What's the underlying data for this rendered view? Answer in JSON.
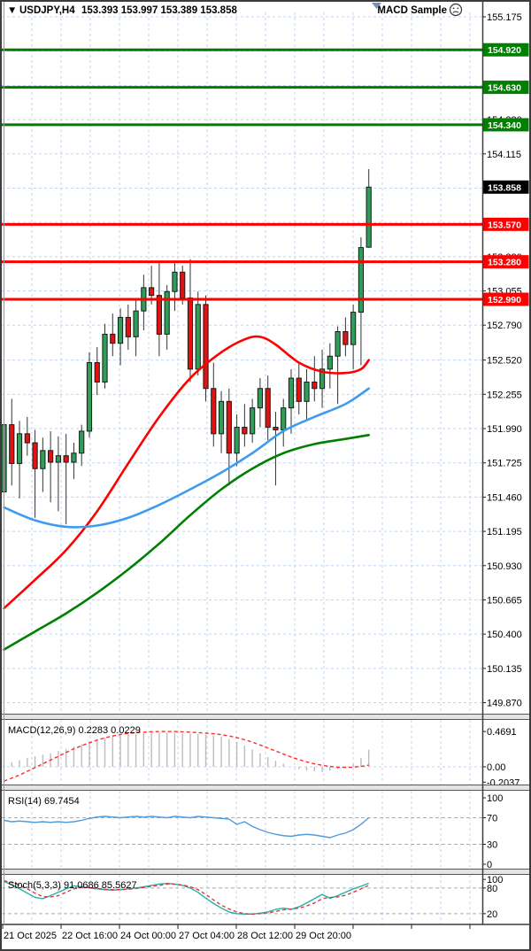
{
  "header": {
    "dropdown_icon": "▼",
    "symbol": "USDJPY,H4",
    "ohlc_values": "153.393 153.997 153.389 153.858",
    "indicator_button": "MACD Sample",
    "smiley_icon": "sad-face"
  },
  "colors": {
    "grid": "#C3D5EE",
    "bull": "#2E9E58",
    "bear": "#E31212",
    "wick": "#333333",
    "candle_outline": "#1a1a1a",
    "ma_fast_red": "#FF0000",
    "ma_mid_blue": "#3E9BEF",
    "ma_slow_green": "#008000",
    "green_level": "#007C00",
    "red_level": "#FF0000",
    "badge_green": "#008000",
    "badge_red": "#FF0000",
    "badge_black": "#000000",
    "macd_hist": "#BDBDBD",
    "macd_signal": "#FF2A2A",
    "rsi_line": "#4F9BDC",
    "stoch_k": "#23B2A8",
    "stoch_d": "#E03030",
    "level_line": "#ABABAB",
    "frame": "#3C3C3C"
  },
  "price_axis": {
    "tick_labels": [
      "155.175",
      "154.910",
      "154.645",
      "154.380",
      "154.115",
      "153.850",
      "153.585",
      "153.320",
      "153.055",
      "152.790",
      "152.520",
      "152.255",
      "151.990",
      "151.725",
      "151.460",
      "151.195",
      "150.930",
      "150.665",
      "150.400",
      "150.135",
      "149.870"
    ],
    "current_price_badge": "153.858"
  },
  "levels": {
    "green": [
      {
        "value": 154.92,
        "label": "154.920"
      },
      {
        "value": 154.63,
        "label": "154.630"
      },
      {
        "value": 154.34,
        "label": "154.340"
      }
    ],
    "red": [
      {
        "value": 153.57,
        "label": "153.570"
      },
      {
        "value": 153.28,
        "label": "153.280"
      },
      {
        "value": 152.99,
        "label": "152.990"
      }
    ]
  },
  "x_axis": {
    "labels": [
      "21 Oct 2025",
      "22 Oct 16:00",
      "24 Oct 00:00",
      "27 Oct 04:00",
      "28 Oct 12:00",
      "29 Oct 20:00"
    ]
  },
  "macd_panel": {
    "label": "MACD(12,26,9) 0.2283 0.0229",
    "axis_labels": [
      "0.4691",
      "0.00",
      "-0.2037"
    ],
    "axis_values": [
      0.4691,
      0.0,
      -0.2037
    ]
  },
  "rsi_panel": {
    "label": "RSI(14) 69.7454",
    "axis_labels": [
      "100",
      "70",
      "30",
      "0"
    ],
    "axis_values": [
      100,
      70,
      30,
      0
    ],
    "level_lines": [
      70,
      30
    ]
  },
  "stoch_panel": {
    "label": "Stoch(5,3,3) 91.0686 85.5627",
    "axis_labels": [
      "100",
      "80",
      "20"
    ],
    "axis_values": [
      100,
      80,
      20
    ],
    "level_lines": [
      80,
      20
    ]
  },
  "chart_data": [
    {
      "type": "candlestick",
      "title": "USDJPY,H4",
      "ylim": [
        149.87,
        155.175
      ],
      "ohlc": [
        [
          151.5,
          152.12,
          150.95,
          152.02
        ],
        [
          152.02,
          152.22,
          151.55,
          151.72
        ],
        [
          151.72,
          152.05,
          151.45,
          151.95
        ],
        [
          151.95,
          152.08,
          151.78,
          151.88
        ],
        [
          151.88,
          151.98,
          151.3,
          151.68
        ],
        [
          151.68,
          151.92,
          151.5,
          151.82
        ],
        [
          151.82,
          151.97,
          151.42,
          151.73
        ],
        [
          151.73,
          151.93,
          151.35,
          151.78
        ],
        [
          151.78,
          151.95,
          151.25,
          151.73
        ],
        [
          151.73,
          151.88,
          151.6,
          151.8
        ],
        [
          151.8,
          152.02,
          151.7,
          151.97
        ],
        [
          151.97,
          152.58,
          151.92,
          152.5
        ],
        [
          152.5,
          152.62,
          152.25,
          152.35
        ],
        [
          152.35,
          152.8,
          152.3,
          152.72
        ],
        [
          152.72,
          152.88,
          152.55,
          152.65
        ],
        [
          152.65,
          152.92,
          152.48,
          152.85
        ],
        [
          152.85,
          152.95,
          152.6,
          152.7
        ],
        [
          152.7,
          152.98,
          152.55,
          152.9
        ],
        [
          152.9,
          153.18,
          152.75,
          153.08
        ],
        [
          153.08,
          153.25,
          152.95,
          153.02
        ],
        [
          153.02,
          153.28,
          152.55,
          152.72
        ],
        [
          152.72,
          153.1,
          152.6,
          153.05
        ],
        [
          153.05,
          153.27,
          152.9,
          153.2
        ],
        [
          153.2,
          153.25,
          152.95,
          153.0
        ],
        [
          153.0,
          153.3,
          152.35,
          152.45
        ],
        [
          152.45,
          153.05,
          152.4,
          152.95
        ],
        [
          152.95,
          153.02,
          152.2,
          152.3
        ],
        [
          152.3,
          152.5,
          151.85,
          151.95
        ],
        [
          151.95,
          152.28,
          151.8,
          152.2
        ],
        [
          152.2,
          152.3,
          151.55,
          151.8
        ],
        [
          151.8,
          152.1,
          151.7,
          152.0
        ],
        [
          152.0,
          152.18,
          151.85,
          151.95
        ],
        [
          151.95,
          152.22,
          151.88,
          152.15
        ],
        [
          152.15,
          152.38,
          152.0,
          152.3
        ],
        [
          152.3,
          152.4,
          151.9,
          152.0
        ],
        [
          152.0,
          152.12,
          151.55,
          151.98
        ],
        [
          151.98,
          152.22,
          151.85,
          152.15
        ],
        [
          152.15,
          152.45,
          151.95,
          152.38
        ],
        [
          152.38,
          152.5,
          152.1,
          152.2
        ],
        [
          152.2,
          152.45,
          152.05,
          152.35
        ],
        [
          152.35,
          152.55,
          152.2,
          152.3
        ],
        [
          152.3,
          152.6,
          152.15,
          152.45
        ],
        [
          152.45,
          152.65,
          152.3,
          152.55
        ],
        [
          152.55,
          152.78,
          152.18,
          152.74
        ],
        [
          152.74,
          152.85,
          152.55,
          152.64
        ],
        [
          152.64,
          152.95,
          152.45,
          152.89
        ],
        [
          152.89,
          153.47,
          152.48,
          153.39
        ],
        [
          153.393,
          153.997,
          153.389,
          153.858
        ]
      ],
      "moving_averages": [
        {
          "name": "fast-red-ma",
          "points": [
            [
              0,
              150.6
            ],
            [
              4,
              150.82
            ],
            [
              8,
              151.05
            ],
            [
              12,
              151.35
            ],
            [
              16,
              151.72
            ],
            [
              20,
              152.08
            ],
            [
              24,
              152.38
            ],
            [
              28,
              152.58
            ],
            [
              31,
              152.68
            ],
            [
              33,
              152.7
            ],
            [
              35,
              152.64
            ],
            [
              38,
              152.5
            ],
            [
              41,
              152.43
            ],
            [
              44,
              152.42
            ],
            [
              46,
              152.45
            ],
            [
              47,
              152.52
            ]
          ]
        },
        {
          "name": "mid-blue-ma",
          "points": [
            [
              0,
              151.38
            ],
            [
              4,
              151.28
            ],
            [
              8,
              151.23
            ],
            [
              12,
              151.24
            ],
            [
              16,
              151.3
            ],
            [
              20,
              151.4
            ],
            [
              24,
              151.52
            ],
            [
              28,
              151.65
            ],
            [
              32,
              151.8
            ],
            [
              36,
              151.97
            ],
            [
              40,
              152.08
            ],
            [
              44,
              152.18
            ],
            [
              47,
              152.3
            ]
          ]
        },
        {
          "name": "slow-green-ma",
          "points": [
            [
              0,
              150.28
            ],
            [
              4,
              150.42
            ],
            [
              8,
              150.56
            ],
            [
              12,
              150.72
            ],
            [
              16,
              150.9
            ],
            [
              20,
              151.1
            ],
            [
              24,
              151.32
            ],
            [
              28,
              151.52
            ],
            [
              32,
              151.68
            ],
            [
              36,
              151.8
            ],
            [
              40,
              151.87
            ],
            [
              44,
              151.91
            ],
            [
              47,
              151.94
            ]
          ]
        }
      ]
    },
    {
      "type": "bar",
      "name": "MACD(12,26,9)",
      "ylim": [
        -0.2037,
        0.4691
      ],
      "histogram": [
        0.03,
        0.06,
        0.09,
        0.12,
        0.14,
        0.16,
        0.18,
        0.21,
        0.24,
        0.27,
        0.3,
        0.33,
        0.36,
        0.385,
        0.405,
        0.42,
        0.435,
        0.44,
        0.445,
        0.45,
        0.45,
        0.45,
        0.445,
        0.44,
        0.44,
        0.435,
        0.43,
        0.42,
        0.4,
        0.37,
        0.33,
        0.28,
        0.23,
        0.18,
        0.13,
        0.08,
        0.04,
        0.0,
        -0.03,
        -0.05,
        -0.06,
        -0.07,
        -0.05,
        -0.03,
        0.01,
        0.04,
        0.12,
        0.2283
      ],
      "signal": [
        -0.19,
        -0.15,
        -0.11,
        -0.06,
        -0.01,
        0.04,
        0.09,
        0.14,
        0.19,
        0.24,
        0.28,
        0.32,
        0.355,
        0.385,
        0.41,
        0.43,
        0.445,
        0.455,
        0.46,
        0.465,
        0.468,
        0.469,
        0.468,
        0.465,
        0.46,
        0.455,
        0.448,
        0.44,
        0.428,
        0.41,
        0.388,
        0.36,
        0.328,
        0.29,
        0.25,
        0.21,
        0.17,
        0.13,
        0.095,
        0.065,
        0.04,
        0.02,
        0.005,
        -0.005,
        -0.008,
        -0.005,
        0.005,
        0.0229
      ]
    },
    {
      "type": "line",
      "name": "RSI(14)",
      "ylim": [
        0,
        100
      ],
      "values": [
        66,
        64,
        65,
        64,
        63,
        64,
        63,
        64,
        63,
        64,
        66,
        69,
        71,
        72,
        71,
        70,
        71,
        72,
        71,
        72,
        71,
        70,
        72,
        71,
        70,
        72,
        71,
        70,
        69,
        68,
        60,
        64,
        57,
        52,
        48,
        45,
        43,
        42,
        44,
        45,
        44,
        42,
        40,
        44,
        47,
        52,
        60,
        70
      ]
    },
    {
      "type": "line",
      "name": "Stoch(5,3,3)",
      "ylim": [
        0,
        100
      ],
      "k": [
        95,
        88,
        78,
        68,
        58,
        55,
        62,
        70,
        78,
        85,
        83,
        80,
        78,
        76,
        75,
        76,
        78,
        80,
        83,
        86,
        89,
        91,
        89,
        86,
        80,
        70,
        56,
        44,
        33,
        24,
        20,
        19,
        19,
        21,
        24,
        30,
        33,
        30,
        36,
        45,
        55,
        65,
        56,
        62,
        70,
        78,
        84,
        91
      ],
      "d": [
        97,
        93,
        87,
        78,
        68,
        60,
        59,
        62,
        70,
        78,
        81,
        81,
        79,
        77,
        76,
        76,
        77,
        79,
        81,
        84,
        86,
        89,
        89,
        87,
        83,
        76,
        65,
        52,
        40,
        31,
        24,
        20,
        19,
        20,
        22,
        25,
        29,
        31,
        33,
        38,
        45,
        55,
        58,
        59,
        63,
        70,
        78,
        86
      ]
    }
  ]
}
